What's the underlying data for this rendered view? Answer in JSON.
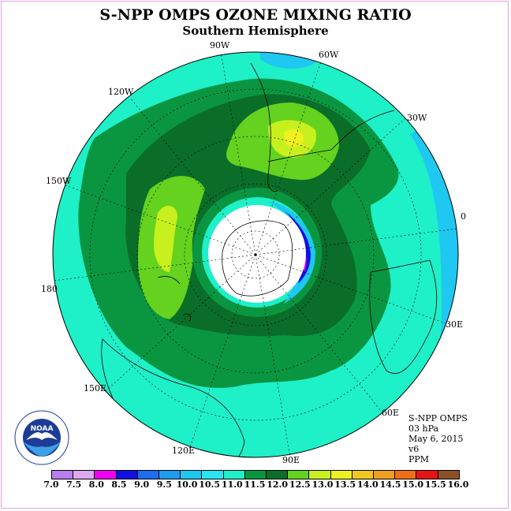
{
  "title": "S-NPP OMPS OZONE MIXING RATIO",
  "subtitle": "Southern Hemisphere",
  "longitude_labels": {
    "lon_90w": "90W",
    "lon_60w": "60W",
    "lon_30w": "30W",
    "lon_0": "0",
    "lon_30e": "30E",
    "lon_60e": "60E",
    "lon_90e": "90E",
    "lon_120e": "120E",
    "lon_150e": "150E",
    "lon_180": "180",
    "lon_150w": "150W",
    "lon_120w": "120W"
  },
  "info": {
    "instrument": "S-NPP OMPS",
    "level": "03 hPa",
    "date": "May 6, 2015",
    "version": "v6",
    "units": "PPM"
  },
  "logo": {
    "text": "NOAA",
    "ring_text": "NATIONAL OCEANIC AND ATMOSPHERIC ADMINISTRATION · U.S. DEPARTMENT OF COMMERCE"
  },
  "colorbar": {
    "ticks": [
      "7.0",
      "7.5",
      "8.0",
      "8.5",
      "9.0",
      "9.5",
      "10.0",
      "10.5",
      "11.0",
      "11.5",
      "12.0",
      "12.5",
      "13.0",
      "13.5",
      "14.0",
      "14.5",
      "15.0",
      "15.5",
      "16.0"
    ],
    "colors": [
      "#b97ef0",
      "#dca8f0",
      "#f000f0",
      "#1010e6",
      "#1c6ef0",
      "#1e9af0",
      "#1ec8f0",
      "#28e6f0",
      "#1ef0c8",
      "#0a9640",
      "#0a6e28",
      "#64d21e",
      "#c8f01e",
      "#f0f01e",
      "#f0c81e",
      "#f0a01e",
      "#f06e14",
      "#e61414",
      "#8c5028"
    ]
  }
}
